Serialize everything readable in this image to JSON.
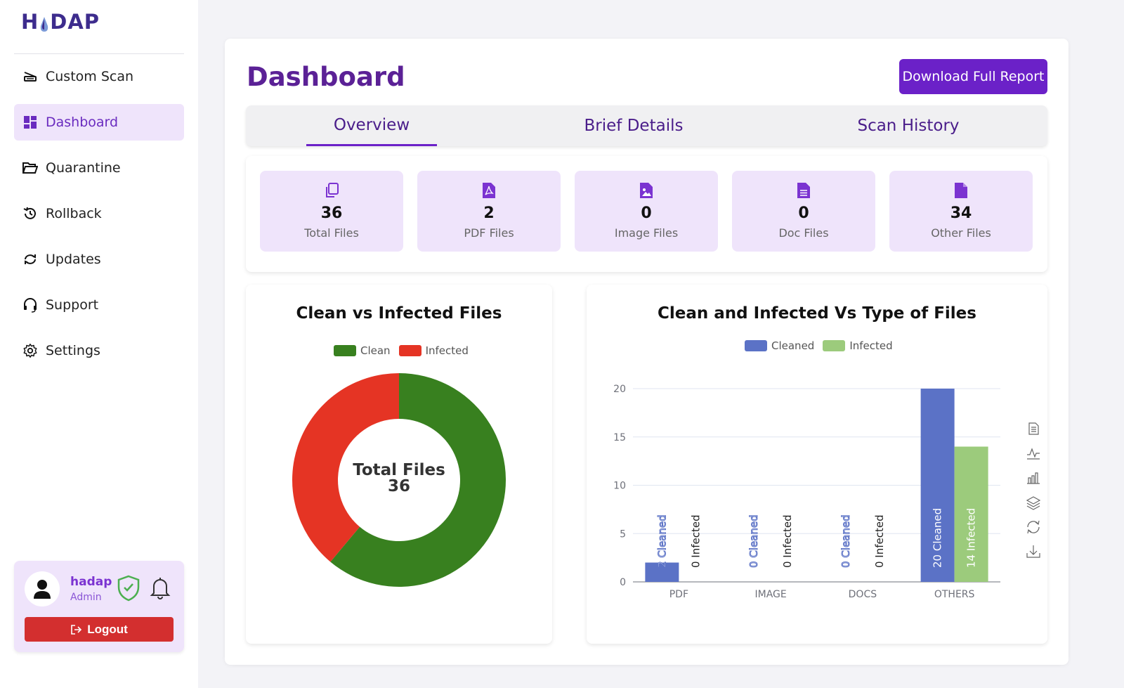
{
  "app": {
    "logo_left": "H",
    "logo_right": "DAP"
  },
  "sidebar": {
    "items": [
      {
        "label": "Custom Scan",
        "icon": "scanner-icon",
        "active": false
      },
      {
        "label": "Dashboard",
        "icon": "dashboard-icon",
        "active": true
      },
      {
        "label": "Quarantine",
        "icon": "folder-open-icon",
        "active": false
      },
      {
        "label": "Rollback",
        "icon": "history-icon",
        "active": false
      },
      {
        "label": "Updates",
        "icon": "sync-icon",
        "active": false
      },
      {
        "label": "Support",
        "icon": "headset-icon",
        "active": false
      },
      {
        "label": "Settings",
        "icon": "gear-icon",
        "active": false
      }
    ]
  },
  "user": {
    "name": "hadap",
    "role": "Admin",
    "logout_label": "Logout"
  },
  "header": {
    "title": "Dashboard",
    "download_label": "Download Full Report"
  },
  "tabs": [
    {
      "label": "Overview",
      "active": true
    },
    {
      "label": "Brief Details",
      "active": false
    },
    {
      "label": "Scan History",
      "active": false
    }
  ],
  "stats": [
    {
      "value": "36",
      "label": "Total Files",
      "icon": "files-copy-icon"
    },
    {
      "value": "2",
      "label": "PDF Files",
      "icon": "pdf-file-icon"
    },
    {
      "value": "0",
      "label": "Image Files",
      "icon": "image-file-icon"
    },
    {
      "value": "0",
      "label": "Doc Files",
      "icon": "doc-file-icon"
    },
    {
      "value": "34",
      "label": "Other Files",
      "icon": "file-icon"
    }
  ],
  "colors": {
    "accent": "#6b21c8",
    "clean": "#38801f",
    "infected": "#e53424",
    "cleaned_bar": "#5b72c6",
    "infected_bar": "#9ccb7c"
  },
  "chart_data": [
    {
      "type": "pie",
      "title": "Clean vs Infected Files",
      "legend": [
        "Clean",
        "Infected"
      ],
      "legend_position": "top",
      "center_label": "Total Files",
      "center_value": "36",
      "slices": [
        {
          "name": "Clean",
          "value": 22
        },
        {
          "name": "Infected",
          "value": 14
        }
      ]
    },
    {
      "type": "bar",
      "title": "Clean and Infected Vs Type of Files",
      "legend_position": "top",
      "categories": [
        "PDF",
        "IMAGE",
        "DOCS",
        "OTHERS"
      ],
      "series": [
        {
          "name": "Cleaned",
          "values": [
            2,
            0,
            0,
            20
          ]
        },
        {
          "name": "Infected",
          "values": [
            0,
            0,
            0,
            14
          ]
        }
      ],
      "ylim": [
        0,
        20
      ],
      "yticks": [
        "0",
        "5",
        "10",
        "15",
        "20"
      ],
      "grid": true,
      "toolbox": [
        "data-view-icon",
        "line-chart-icon",
        "bar-chart-icon",
        "stack-icon",
        "restore-icon",
        "download-icon"
      ]
    }
  ]
}
